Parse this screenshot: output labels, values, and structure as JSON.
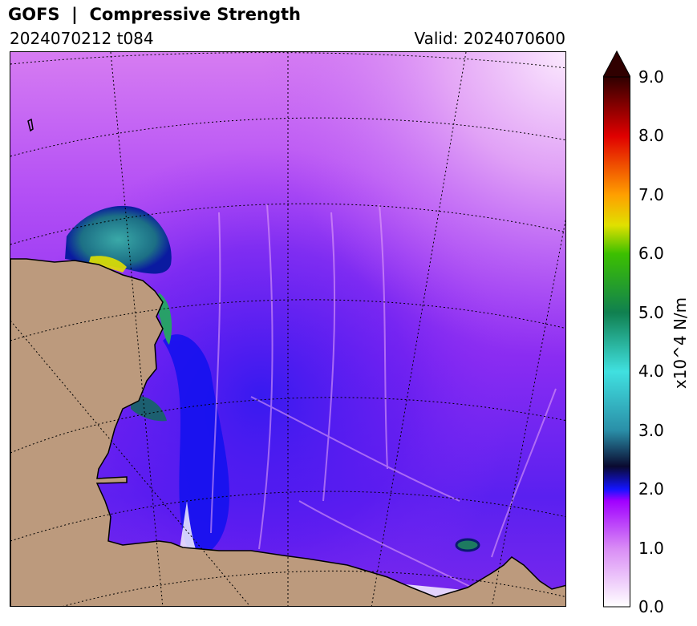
{
  "header": {
    "title": "GOFS  |  Compressive Strength",
    "run": "2024070212 t084",
    "valid": "Valid: 2024070600"
  },
  "colorbar": {
    "label": "x10^4 N/m",
    "min": 0.0,
    "max": 9.0,
    "ticks": [
      "0.0",
      "1.0",
      "2.0",
      "3.0",
      "4.0",
      "5.0",
      "6.0",
      "7.0",
      "8.0",
      "9.0"
    ],
    "extend": "max",
    "colors": {
      "0.0": "#ffffff",
      "1.0": "#d98cf5",
      "1.8": "#a000ff",
      "2.0": "#1414ff",
      "2.4": "#0a0a30",
      "3.0": "#2a8fa8",
      "4.0": "#40e0e0",
      "5.0": "#108050",
      "6.0": "#3cc000",
      "6.5": "#e0e000",
      "7.0": "#ffa000",
      "8.0": "#e00000",
      "9.0": "#300000"
    }
  },
  "map": {
    "land_color": "#bc9a7d",
    "coastline_color": "#000000",
    "gridlines": "dotted"
  }
}
